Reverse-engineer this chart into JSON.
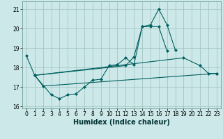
{
  "xlabel": "Humidex (Indice chaleur)",
  "x_values": [
    0,
    1,
    2,
    3,
    4,
    5,
    6,
    7,
    8,
    9,
    10,
    11,
    12,
    13,
    14,
    15,
    16,
    17,
    18,
    19,
    20,
    21,
    22,
    23
  ],
  "line1_y": [
    18.6,
    17.6,
    null,
    16.6,
    16.4,
    16.6,
    16.65,
    17.0,
    17.35,
    17.4,
    18.1,
    18.15,
    18.5,
    18.15,
    20.1,
    20.1,
    20.1,
    18.85,
    null,
    null,
    null,
    null,
    null,
    null
  ],
  "line2_y": [
    null,
    17.6,
    null,
    null,
    null,
    null,
    null,
    null,
    null,
    null,
    null,
    null,
    18.1,
    18.55,
    20.1,
    20.2,
    21.0,
    20.2,
    18.9,
    null,
    null,
    null,
    null,
    null
  ],
  "line3_y": [
    null,
    17.6,
    null,
    null,
    null,
    null,
    null,
    null,
    null,
    null,
    null,
    null,
    null,
    null,
    null,
    null,
    null,
    null,
    null,
    18.5,
    null,
    18.1,
    17.7,
    17.7
  ],
  "line4_y": [
    null,
    17.6,
    17.05,
    null,
    null,
    null,
    null,
    null,
    null,
    null,
    null,
    null,
    null,
    null,
    null,
    null,
    null,
    null,
    null,
    null,
    null,
    null,
    null,
    17.7
  ],
  "bg_color": "#cde8e8",
  "grid_color": "#9bbfbf",
  "line_color": "#006060",
  "ylim": [
    15.9,
    21.4
  ],
  "yticks": [
    16,
    17,
    18,
    19,
    20,
    21
  ],
  "xlim": [
    -0.5,
    23.5
  ],
  "tick_fontsize": 5.5,
  "xlabel_fontsize": 7
}
